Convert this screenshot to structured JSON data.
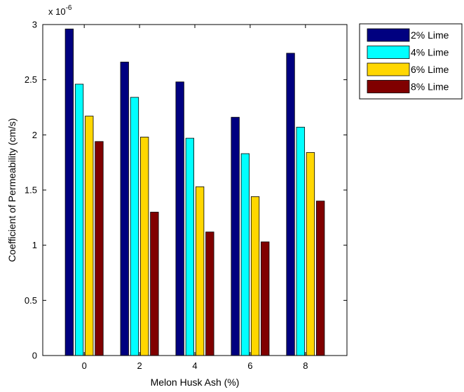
{
  "chart_data": {
    "type": "bar",
    "title": "",
    "xlabel": "Melon Husk Ash (%)",
    "ylabel": "Coefficient of Permeability (cm/s)",
    "y_exponent_label": "x 10",
    "y_exponent_power": "-6",
    "categories": [
      "0",
      "2",
      "4",
      "6",
      "8"
    ],
    "xlim": [
      -1.5,
      9.5
    ],
    "ylim": [
      0,
      3
    ],
    "yticks": [
      0,
      0.5,
      1,
      1.5,
      2,
      2.5,
      3
    ],
    "ytick_labels": [
      "0",
      "0.5",
      "1",
      "1.5",
      "2",
      "2.5",
      "3"
    ],
    "legend_position": "outside-top-right",
    "grid": false,
    "series": [
      {
        "name": "2% Lime",
        "color": "#000080",
        "values": [
          2.96,
          2.66,
          2.48,
          2.16,
          2.74
        ]
      },
      {
        "name": "4% Lime",
        "color": "#00FFFF",
        "values": [
          2.46,
          2.34,
          1.97,
          1.83,
          2.07
        ]
      },
      {
        "name": "6% Lime",
        "color": "#FFD700",
        "values": [
          2.17,
          1.98,
          1.53,
          1.44,
          1.84
        ]
      },
      {
        "name": "8% Lime",
        "color": "#800000",
        "values": [
          1.94,
          1.3,
          1.12,
          1.03,
          1.4
        ]
      }
    ]
  }
}
